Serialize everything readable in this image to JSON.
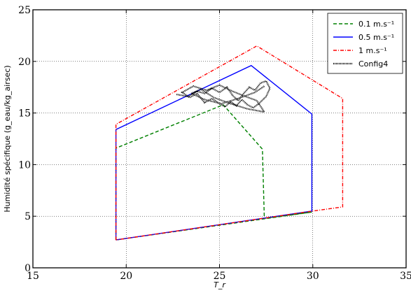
{
  "chart_data": {
    "type": "line",
    "xlabel": "T_r",
    "ylabel": "Humidité spécifique (g_eau/kg_airsec)",
    "xlim": [
      15,
      35
    ],
    "ylim": [
      0,
      25
    ],
    "x_ticks": [
      15,
      20,
      25,
      30,
      35
    ],
    "y_ticks": [
      0,
      5,
      10,
      15,
      20,
      25
    ],
    "grid": true,
    "legend_position": "top-right",
    "series": [
      {
        "name": "0.1 m.s⁻¹",
        "style": "dashed",
        "color": "#008000",
        "x": [
          19.45,
          19.45,
          24.8,
          25.2,
          27.3,
          27.4,
          29.95,
          19.45
        ],
        "y": [
          2.7,
          11.6,
          15.5,
          15.8,
          11.5,
          4.8,
          5.4,
          2.7
        ]
      },
      {
        "name": "0.5 m.s⁻¹",
        "style": "solid",
        "color": "#0000ff",
        "x": [
          19.45,
          19.45,
          26.7,
          29.95,
          29.95,
          19.45
        ],
        "y": [
          2.7,
          13.4,
          19.6,
          14.9,
          5.5,
          2.7
        ]
      },
      {
        "name": "1 m.s⁻¹",
        "style": "dashdot",
        "color": "#ff0000",
        "x": [
          19.45,
          19.45,
          27.0,
          31.6,
          31.6,
          30.0,
          19.45
        ],
        "y": [
          2.7,
          13.9,
          21.5,
          16.4,
          5.9,
          5.5,
          2.7
        ]
      },
      {
        "name": "Config4",
        "style": "dotted",
        "color": "#000000",
        "x": [
          22.7,
          23.3,
          23.8,
          24.2,
          24.6,
          25.0,
          25.4,
          25.7,
          26.0,
          26.3,
          26.6,
          26.9,
          27.2,
          27.5,
          27.7,
          27.5,
          27.1,
          26.8,
          26.5,
          26.2,
          25.9,
          25.6,
          25.3,
          25.0,
          24.6,
          24.2,
          23.8,
          23.4,
          23.0,
          23.6,
          24.3,
          25.0,
          25.7,
          26.4,
          27.0,
          27.4,
          26.5,
          25.6,
          24.7,
          24.0,
          23.5,
          24.2,
          25.1,
          26.0,
          26.9,
          27.4
        ],
        "y": [
          16.8,
          16.6,
          17.1,
          16.9,
          17.4,
          17.0,
          17.5,
          16.7,
          16.2,
          16.9,
          17.5,
          17.2,
          17.9,
          18.1,
          17.4,
          16.6,
          15.9,
          15.5,
          15.8,
          16.3,
          15.7,
          16.1,
          15.6,
          15.9,
          16.4,
          16.0,
          16.9,
          16.5,
          17.0,
          17.6,
          17.2,
          17.7,
          17.1,
          16.6,
          16.2,
          15.1,
          15.4,
          15.9,
          16.5,
          17.3,
          16.9,
          16.3,
          15.9,
          16.4,
          17.0,
          17.6
        ]
      }
    ]
  }
}
